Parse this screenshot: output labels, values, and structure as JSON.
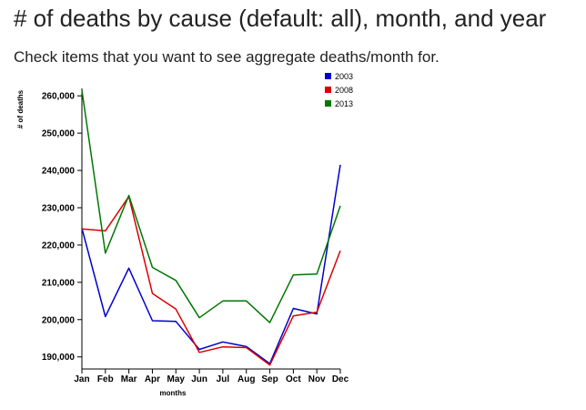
{
  "page": {
    "title": "# of deaths by cause (default: all), month, and year",
    "subtitle": "Check items that you want to see aggregate deaths/month for."
  },
  "chart_data": {
    "type": "line",
    "title": "",
    "xlabel": "months",
    "ylabel": "# of deaths",
    "categories": [
      "Jan",
      "Feb",
      "Mar",
      "Apr",
      "May",
      "Jun",
      "Jul",
      "Aug",
      "Sep",
      "Oct",
      "Nov",
      "Dec"
    ],
    "ylim": [
      187000,
      262000
    ],
    "yticks": [
      190000,
      200000,
      210000,
      220000,
      230000,
      240000,
      250000,
      260000
    ],
    "ytick_labels": [
      "190,000",
      "200,000",
      "210,000",
      "220,000",
      "230,000",
      "240,000",
      "250,000",
      "260,000"
    ],
    "grid": false,
    "legend": "top-right",
    "series": [
      {
        "name": "2003",
        "color": "#0000cc",
        "values": [
          224500,
          200800,
          213800,
          199700,
          199500,
          192000,
          194000,
          192800,
          188200,
          203000,
          201500,
          241500
        ]
      },
      {
        "name": "2008",
        "color": "#dd0000",
        "values": [
          224300,
          223800,
          233000,
          207000,
          202800,
          191200,
          192700,
          192500,
          187800,
          201000,
          202000,
          218500
        ]
      },
      {
        "name": "2013",
        "color": "#007700",
        "values": [
          261500,
          217800,
          233300,
          214000,
          210500,
          200500,
          205000,
          205000,
          199200,
          212000,
          212200,
          230500
        ]
      }
    ]
  }
}
